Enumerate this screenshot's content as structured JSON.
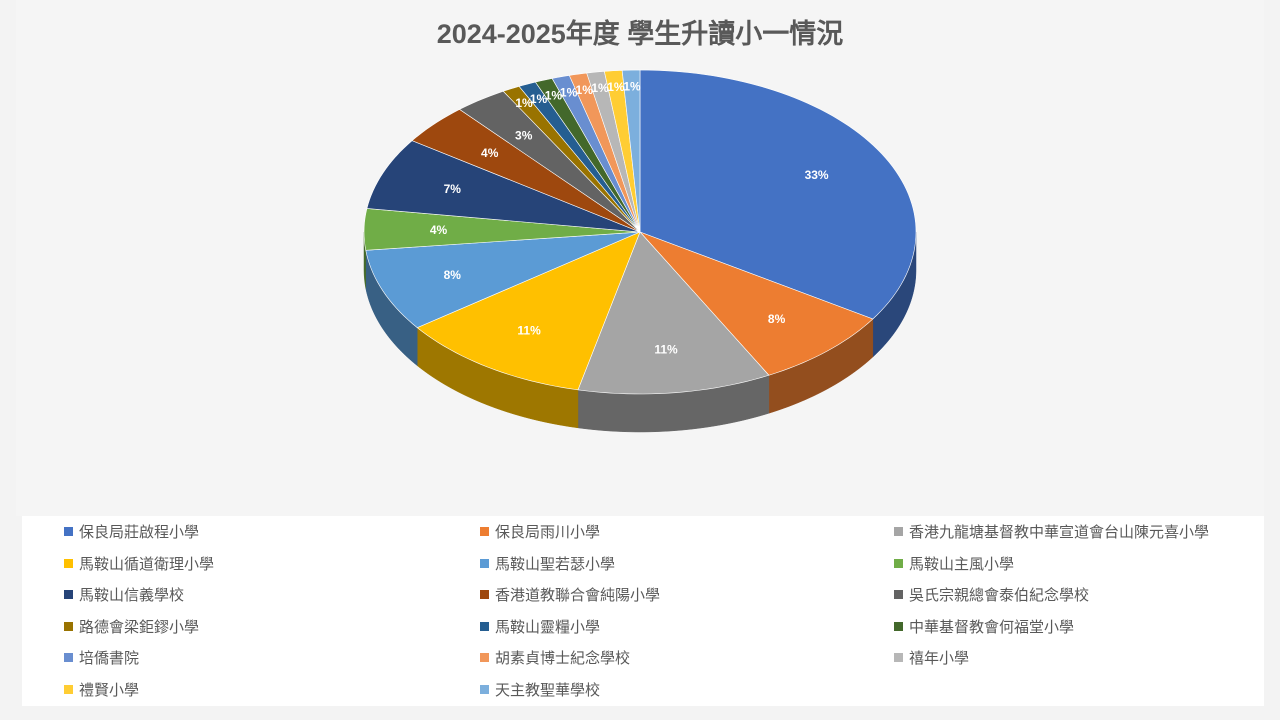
{
  "chart_data": {
    "type": "pie",
    "title": "2024-2025年度 學生升讀小一情況",
    "legend_position": "bottom",
    "categories": [
      "保良局莊啟程小學",
      "保良局雨川小學",
      "香港九龍塘基督教中華宣道會台山陳元喜小學",
      "馬鞍山循道衛理小學",
      "馬鞍山聖若瑟小學",
      "馬鞍山主風小學",
      "馬鞍山信義學校",
      "香港道教聯合會純陽小學",
      "吳氏宗親總會泰伯紀念學校",
      "路德會梁鉅鏐小學",
      "馬鞍山靈糧小學",
      "中華基督教會何福堂小學",
      "培僑書院",
      "胡素貞博士紀念學校",
      "禧年小學",
      "禮賢小學",
      "天主教聖華學校"
    ],
    "values": [
      33,
      8,
      11,
      11,
      8,
      4,
      7,
      4,
      3,
      1,
      1,
      1,
      1,
      1,
      1,
      1,
      1
    ],
    "labels": [
      "33%",
      "8%",
      "11%",
      "11%",
      "8%",
      "4%",
      "7%",
      "4%",
      "3%",
      "1%",
      "1%",
      "1%",
      "1%",
      "1%",
      "1%",
      "1%",
      "1%"
    ],
    "colors": [
      "#4472C4",
      "#ED7D31",
      "#A5A5A5",
      "#FFC000",
      "#5B9BD5",
      "#70AD47",
      "#264478",
      "#9E480E",
      "#636363",
      "#997300",
      "#255E91",
      "#43682B",
      "#698ED0",
      "#F1975A",
      "#B7B7B7",
      "#FFCD33",
      "#7CAFDD"
    ]
  }
}
